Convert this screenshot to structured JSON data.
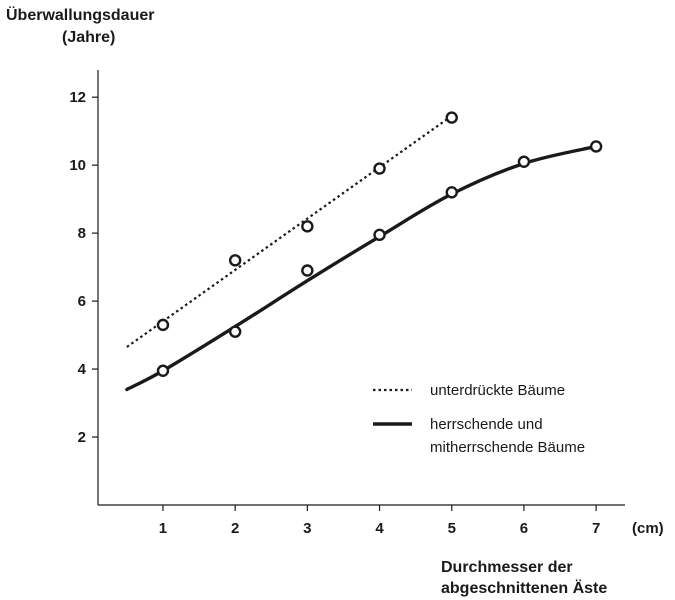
{
  "chart_data": {
    "type": "scatter",
    "ylabel": [
      "Überwallungsdauer",
      "(Jahre)"
    ],
    "xlabel": [
      "Durchmesser der",
      "abgeschnittenen Äste"
    ],
    "x_unit": "(cm)",
    "xlim": [
      0.1,
      7.4
    ],
    "ylim": [
      0,
      12.8
    ],
    "x_ticks": [
      1,
      2,
      3,
      4,
      5,
      6,
      7
    ],
    "y_ticks": [
      2,
      4,
      6,
      8,
      10,
      12
    ],
    "grid": false,
    "legend_position": "lower-right",
    "series": [
      {
        "name": "unterdrückte Bäume",
        "line_style": "dotted",
        "color": "#1a1a1a",
        "points": [
          {
            "x": 1,
            "y": 5.3
          },
          {
            "x": 2,
            "y": 7.2
          },
          {
            "x": 3,
            "y": 8.2
          },
          {
            "x": 4,
            "y": 9.9
          },
          {
            "x": 5,
            "y": 11.4
          }
        ],
        "fit_line": [
          {
            "x": 0.5,
            "y": 4.65
          },
          {
            "x": 5.0,
            "y": 11.45
          }
        ]
      },
      {
        "name": [
          "herrschende und",
          "mitherrschende Bäume"
        ],
        "line_style": "solid",
        "color": "#1a1a1a",
        "points": [
          {
            "x": 1,
            "y": 3.95
          },
          {
            "x": 2,
            "y": 5.1
          },
          {
            "x": 3,
            "y": 6.9
          },
          {
            "x": 4,
            "y": 7.95
          },
          {
            "x": 5,
            "y": 9.2
          },
          {
            "x": 6,
            "y": 10.1
          },
          {
            "x": 7,
            "y": 10.55
          }
        ],
        "fit_line": [
          {
            "x": 0.5,
            "y": 3.4
          },
          {
            "x": 1.0,
            "y": 3.95
          },
          {
            "x": 2.0,
            "y": 5.25
          },
          {
            "x": 3.0,
            "y": 6.6
          },
          {
            "x": 4.0,
            "y": 7.9
          },
          {
            "x": 5.0,
            "y": 9.15
          },
          {
            "x": 6.0,
            "y": 10.05
          },
          {
            "x": 7.0,
            "y": 10.55
          }
        ]
      }
    ]
  }
}
